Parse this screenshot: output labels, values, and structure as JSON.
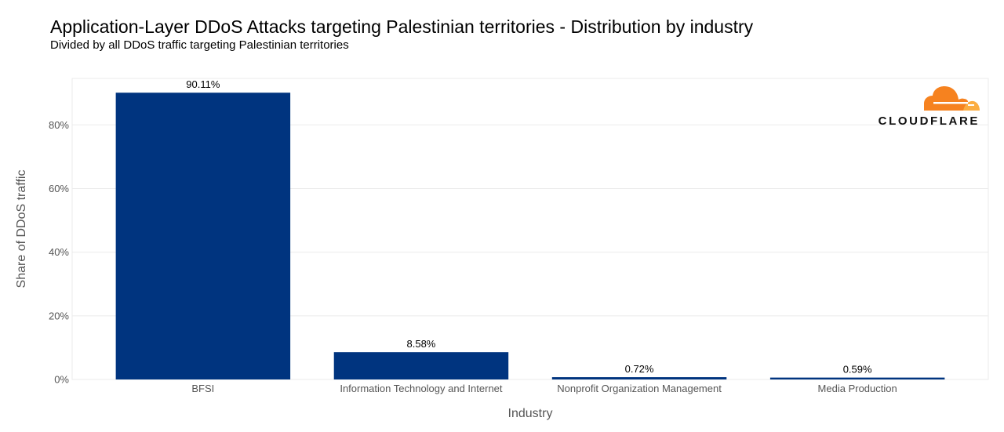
{
  "chart_data": {
    "type": "bar",
    "title": "Application-Layer DDoS Attacks targeting Palestinian territories - Distribution by industry",
    "subtitle": "Divided by all DDoS traffic targeting Palestinian territories",
    "xlabel": "Industry",
    "ylabel": "Share of DDoS traffic",
    "categories": [
      "BFSI",
      "Information Technology and Internet",
      "Nonprofit Organization Management",
      "Media Production"
    ],
    "values": [
      90.11,
      8.58,
      0.72,
      0.59
    ],
    "data_labels": [
      "90.11%",
      "8.58%",
      "0.72%",
      "0.59%"
    ],
    "y_ticks": [
      0,
      20,
      40,
      60,
      80
    ],
    "y_tick_labels": [
      "0%",
      "20%",
      "40%",
      "60%",
      "80%"
    ],
    "ylim": [
      0,
      94.6
    ],
    "grid": true,
    "legend": "none",
    "bar_color": "#00347f"
  },
  "branding": {
    "logo_text": "CLOUDFLARE",
    "logo_icon": "cloud-icon",
    "logo_colors": [
      "#f6821f",
      "#fbad41"
    ]
  }
}
